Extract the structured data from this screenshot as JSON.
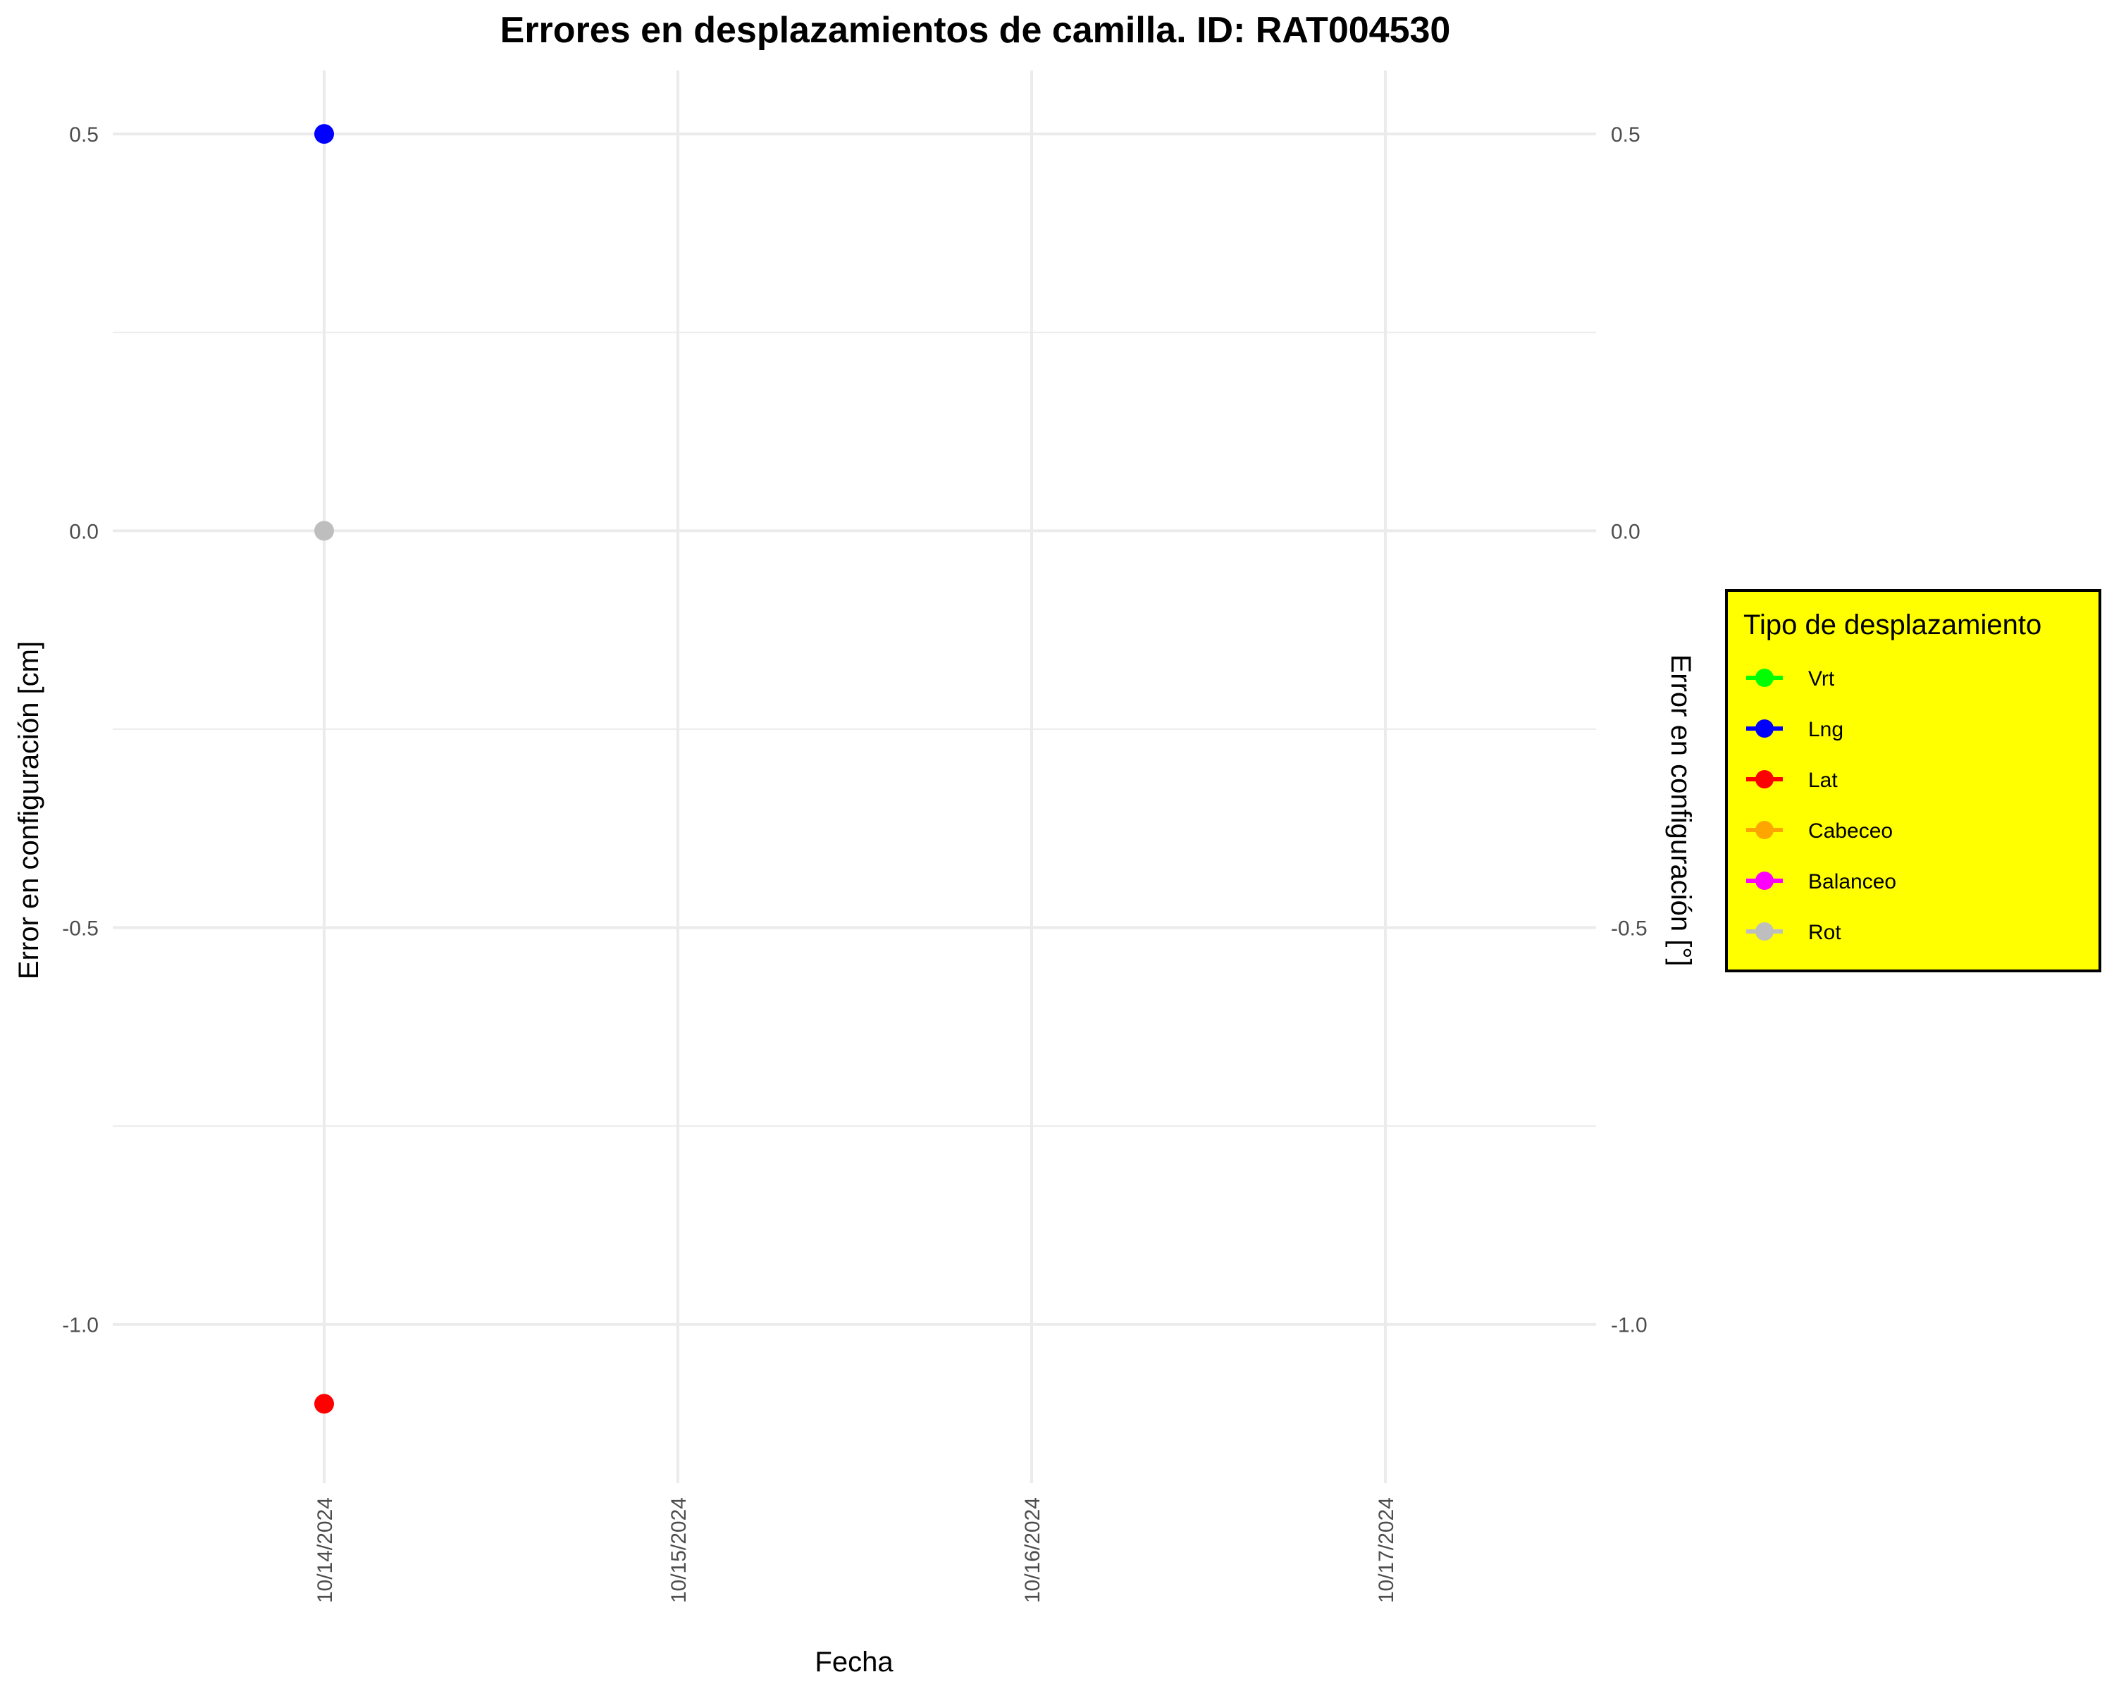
{
  "chart_data": {
    "type": "scatter",
    "title": "Errores en desplazamientos de camilla. ID: RAT004530",
    "xlabel": "Fecha",
    "ylabel": "Error en configuración [cm]",
    "ylabel_right": "Error en configuración [°]",
    "categories": [
      "10/14/2024",
      "10/15/2024",
      "10/16/2024",
      "10/17/2024"
    ],
    "xlim": [
      "10/13/2024 ~09:00",
      "10/17/2024 ~15:00"
    ],
    "ylim": [
      -1.2,
      0.58
    ],
    "y_ticks": [
      0.5,
      0.0,
      -0.5,
      -1.0
    ],
    "y_tick_labels": [
      "0.5",
      "0.0",
      "-0.5",
      "-1.0"
    ],
    "grid": true,
    "legend": {
      "title": "Tipo de desplazamiento",
      "position": "right",
      "background": "#ffff00",
      "border": "#000000"
    },
    "series": [
      {
        "name": "Vrt",
        "color": "#00ff00",
        "points": []
      },
      {
        "name": "Lng",
        "color": "#0000ff",
        "points": [
          {
            "x": "10/14/2024",
            "y": 0.5
          }
        ]
      },
      {
        "name": "Lat",
        "color": "#ff0000",
        "points": [
          {
            "x": "10/14/2024",
            "y": -1.1
          }
        ]
      },
      {
        "name": "Cabeceo",
        "color": "#ffa500",
        "points": []
      },
      {
        "name": "Balanceo",
        "color": "#ff00ff",
        "points": []
      },
      {
        "name": "Rot",
        "color": "#bebebe",
        "points": [
          {
            "x": "10/14/2024",
            "y": 0.0
          }
        ]
      }
    ]
  }
}
